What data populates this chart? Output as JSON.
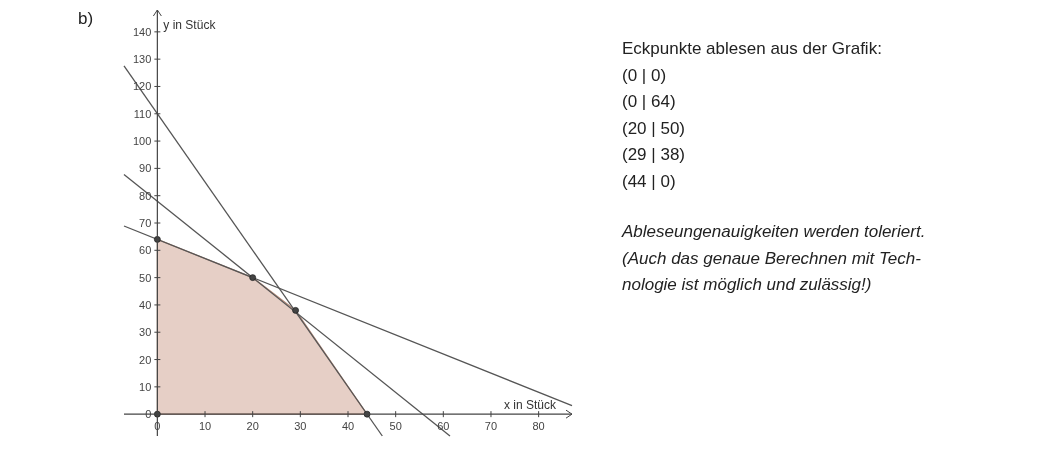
{
  "chart_data": {
    "type": "line",
    "xlabel": "x in Stück",
    "ylabel": "y in Stück",
    "xlim": [
      -7,
      87
    ],
    "ylim": [
      -8,
      148
    ],
    "xticks": [
      0,
      10,
      20,
      30,
      40,
      50,
      60,
      70,
      80
    ],
    "yticks": [
      0,
      10,
      20,
      30,
      40,
      50,
      60,
      70,
      80,
      90,
      100,
      110,
      120,
      130,
      140
    ],
    "grid": false,
    "series": [
      {
        "type": "area",
        "color": "#e6cfc6",
        "x": [
          0,
          20,
          29,
          44
        ],
        "values": [
          64,
          50,
          38,
          0
        ]
      },
      {
        "color": "#555555",
        "x": [
          -7,
          47.2
        ],
        "values": [
          127.5,
          -8
        ]
      },
      {
        "color": "#555555",
        "x": [
          -7,
          61.4
        ],
        "values": [
          87.8,
          -8
        ]
      },
      {
        "color": "#555555",
        "x": [
          -7,
          87
        ],
        "values": [
          68.9,
          3.1
        ]
      },
      {
        "type": "scatter",
        "color": "#444444",
        "marker": "circle",
        "x": [
          0,
          0,
          20,
          29,
          44
        ],
        "values": [
          0,
          64,
          50,
          38,
          0
        ]
      }
    ],
    "annotations": [
      "b)",
      "Eckpunkte ablesen aus der Grafik:",
      "(0 | 0)",
      "(0 | 64)",
      "(20 | 50)",
      "(29 | 38)",
      "(44 | 0)",
      "Ableseungenauigkeiten werden toleriert.",
      "(Auch das genaue Berechnen mit Tech-",
      "nologie ist möglich und zulässig!)"
    ]
  }
}
